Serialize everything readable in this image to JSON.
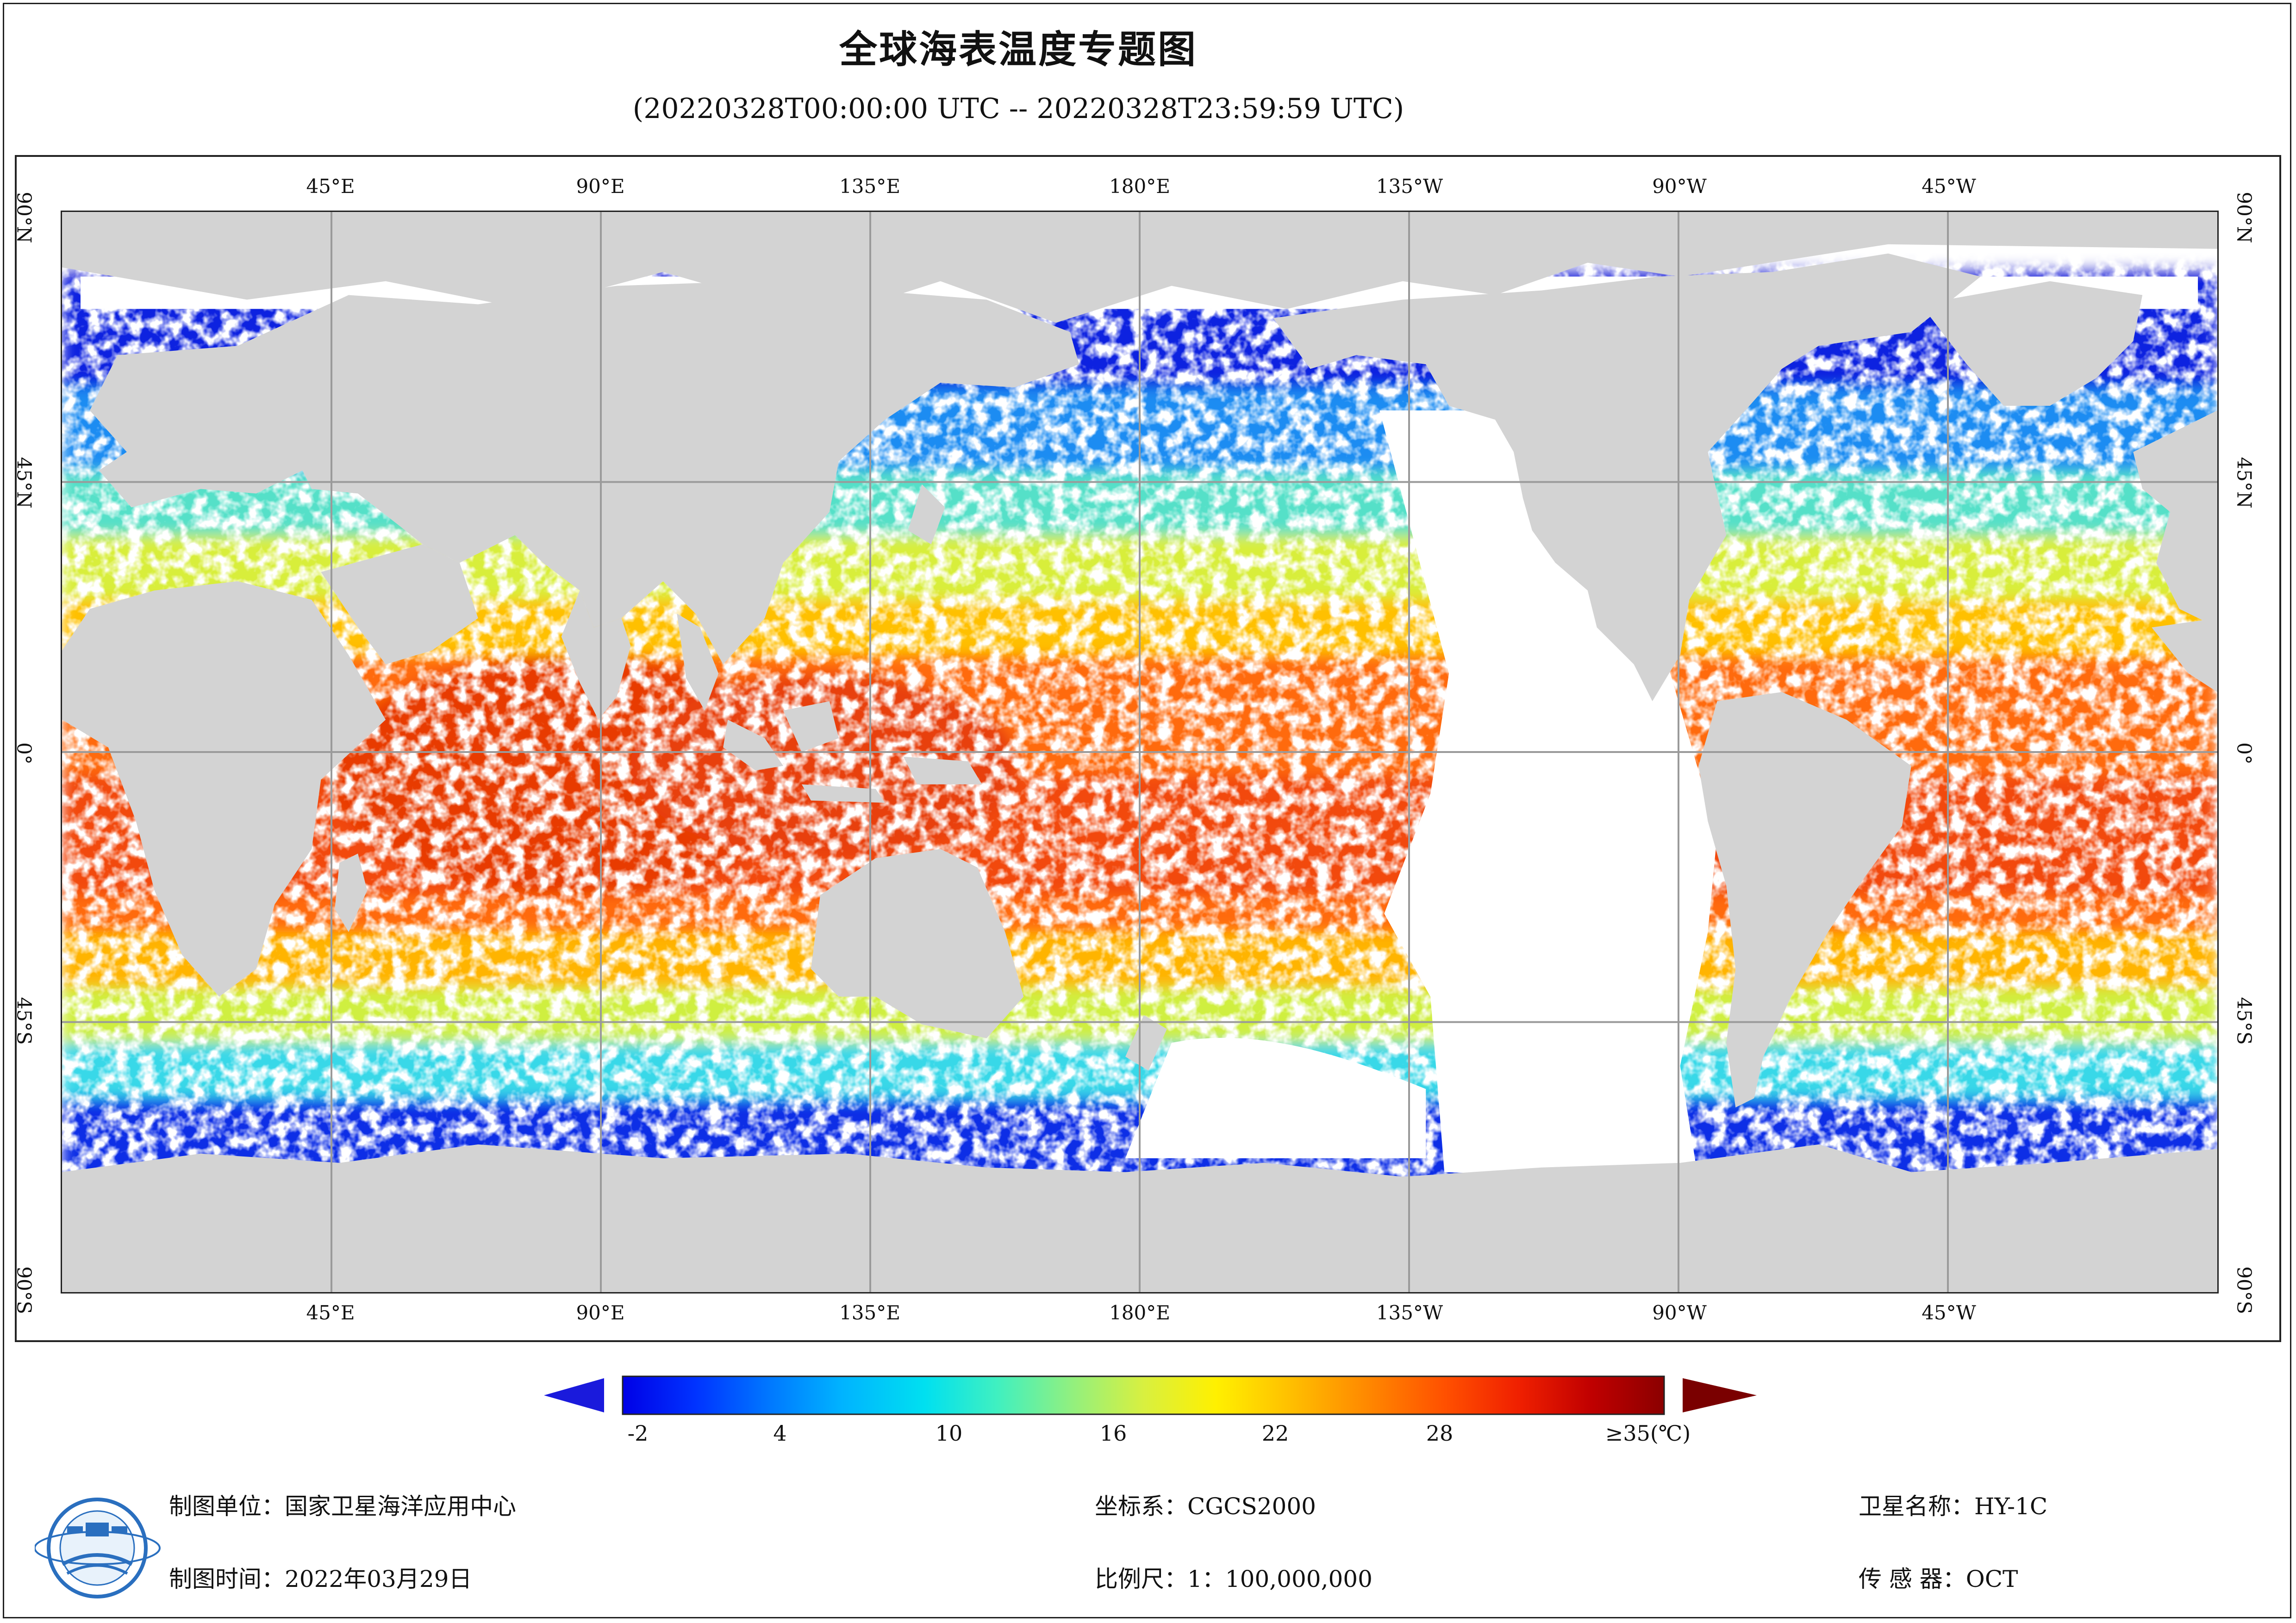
{
  "title": "全球海表温度专题图",
  "subtitle": "(20220328T00:00:00 UTC -- 20220328T23:59:59 UTC)",
  "graticule": {
    "longitude_labels": [
      "45°E",
      "90°E",
      "135°E",
      "180°E",
      "135°W",
      "90°W",
      "45°W"
    ],
    "latitude_labels": [
      "90°N",
      "45°N",
      "0°",
      "45°S",
      "90°S"
    ]
  },
  "legend": {
    "tick_labels": [
      "-2",
      "4",
      "10",
      "16",
      "22",
      "28",
      "≥35(℃)"
    ],
    "under_color": "#1a1adc",
    "over_color": "#7a0000",
    "colors": [
      "#0000e6",
      "#0033ff",
      "#0077ff",
      "#00b3ff",
      "#00e0f0",
      "#40f0c0",
      "#90f080",
      "#d8f040",
      "#fff000",
      "#ffc000",
      "#ff8c00",
      "#ff5000",
      "#f02000",
      "#c00000",
      "#8b0000"
    ]
  },
  "footer": {
    "org": "制图单位：国家卫星海洋应用中心",
    "date": "制图时间：2022年03月29日",
    "crs": "坐标系：CGCS2000",
    "scale": "比例尺：1：100,000,000",
    "satellite": "卫星名称：HY-1C",
    "sensor": "传  感  器：OCT"
  },
  "colors": {
    "land": "#d3d3d3",
    "no_data": "#ffffff",
    "grid": "#9a9a9a"
  }
}
